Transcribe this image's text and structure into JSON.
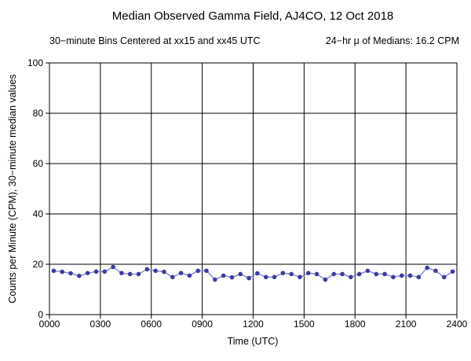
{
  "chart_data": {
    "type": "line",
    "title": "Median Observed Gamma Field, AJ4CO, 12 Oct 2018",
    "subtitle_left": "30−minute Bins Centered at xx15 and xx45 UTC",
    "subtitle_right": "24−hr μ of Medians: 16.2 CPM",
    "xlabel": "Time (UTC)",
    "ylabel": "Counts per Minute (CPM), 30−minute median values",
    "xlim": [
      0,
      24
    ],
    "ylim": [
      0,
      100
    ],
    "xticks": [
      0,
      3,
      6,
      9,
      12,
      15,
      18,
      21,
      24
    ],
    "xtick_labels": [
      "0000",
      "0300",
      "0600",
      "0900",
      "1200",
      "1500",
      "1800",
      "2100",
      "2400"
    ],
    "yticks": [
      0,
      20,
      40,
      60,
      80,
      100
    ],
    "ytick_labels": [
      "0",
      "20",
      "40",
      "60",
      "80",
      "100"
    ],
    "grid": true,
    "colors": {
      "line": "#8c8cd8",
      "marker": "#3c3ca0",
      "grid": "#000000"
    },
    "x_hours": [
      0.25,
      0.75,
      1.25,
      1.75,
      2.25,
      2.75,
      3.25,
      3.75,
      4.25,
      4.75,
      5.25,
      5.75,
      6.25,
      6.75,
      7.25,
      7.75,
      8.25,
      8.75,
      9.25,
      9.75,
      10.25,
      10.75,
      11.25,
      11.75,
      12.25,
      12.75,
      13.25,
      13.75,
      14.25,
      14.75,
      15.25,
      15.75,
      16.25,
      16.75,
      17.25,
      17.75,
      18.25,
      18.75,
      19.25,
      19.75,
      20.25,
      20.75,
      21.25,
      21.75,
      22.25,
      22.75,
      23.25,
      23.75
    ],
    "values": [
      17.4,
      17.0,
      16.4,
      15.4,
      16.5,
      17.1,
      17.1,
      18.9,
      16.5,
      16.1,
      16.1,
      18.0,
      17.4,
      17.0,
      14.9,
      16.5,
      15.5,
      17.4,
      17.4,
      13.9,
      15.5,
      14.8,
      16.1,
      14.5,
      16.4,
      14.9,
      14.9,
      16.5,
      16.1,
      14.9,
      16.5,
      16.1,
      13.9,
      16.1,
      16.1,
      14.9,
      16.1,
      17.4,
      16.1,
      16.1,
      14.9,
      15.5,
      15.5,
      14.9,
      18.6,
      17.4,
      14.9,
      17.1
    ]
  }
}
